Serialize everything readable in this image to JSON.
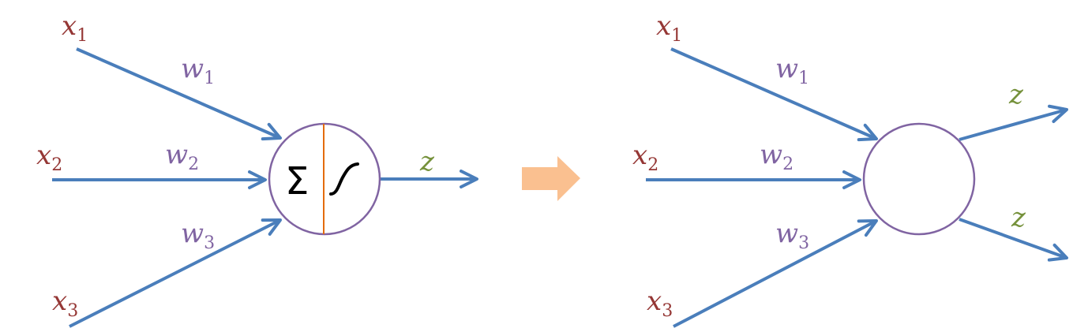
{
  "colors": {
    "arrow": "#4a7ebb",
    "node_border": "#8064a2",
    "input_label": "#953735",
    "weight_label": "#8064a2",
    "output_label": "#76923c",
    "divider": "#e46c0a",
    "transform_arrow": "#fac090"
  },
  "left_neuron": {
    "inputs": [
      {
        "var": "x",
        "sub": "1"
      },
      {
        "var": "x",
        "sub": "2"
      },
      {
        "var": "x",
        "sub": "3"
      }
    ],
    "weights": [
      {
        "var": "w",
        "sub": "1"
      },
      {
        "var": "w",
        "sub": "2"
      },
      {
        "var": "w",
        "sub": "3"
      }
    ],
    "sum_symbol": "Σ",
    "activation_icon": "sigmoid-curve-icon",
    "output": "z"
  },
  "transform_icon": "right-arrow-icon",
  "right_neuron": {
    "inputs": [
      {
        "var": "x",
        "sub": "1"
      },
      {
        "var": "x",
        "sub": "2"
      },
      {
        "var": "x",
        "sub": "3"
      }
    ],
    "weights": [
      {
        "var": "w",
        "sub": "1"
      },
      {
        "var": "w",
        "sub": "2"
      },
      {
        "var": "w",
        "sub": "3"
      }
    ],
    "outputs": [
      "z",
      "z"
    ]
  }
}
